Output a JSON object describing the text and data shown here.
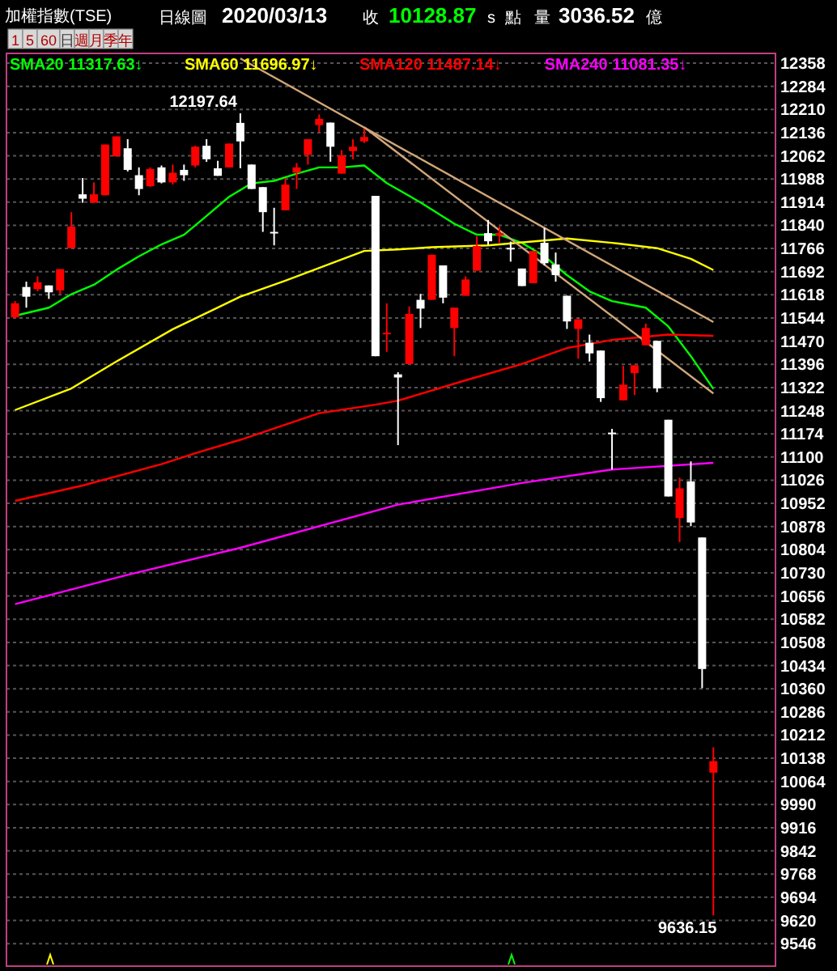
{
  "chart_data": {
    "type": "candlestick",
    "title": "加權指數(TSE)",
    "subtitle": "日線圖 2020/03/13 收 10128.87 s 點 量 3036.52 億",
    "categories": [
      null,
      null,
      null,
      null,
      null,
      null,
      null,
      null,
      null,
      null,
      null,
      null,
      null,
      null,
      null,
      null,
      null,
      null,
      null,
      null,
      null,
      null,
      null,
      null,
      null,
      null,
      null,
      null,
      null,
      null,
      null,
      null,
      null,
      null,
      null,
      null,
      null,
      null,
      null,
      null,
      null,
      null,
      null,
      null,
      null,
      null,
      null,
      null,
      null,
      null,
      null,
      null,
      null,
      null,
      null,
      null,
      null,
      null,
      null,
      null,
      null,
      null,
      null
    ],
    "ohlc": [
      [
        11546,
        11598,
        11543,
        11591
      ],
      [
        11643,
        11660,
        11577,
        11612
      ],
      [
        11636,
        11677,
        11629,
        11658
      ],
      [
        11648,
        11648,
        11605,
        11626
      ],
      [
        11632,
        11700,
        11620,
        11700
      ],
      [
        11767,
        11882,
        11767,
        11836
      ],
      [
        11939,
        11991,
        11912,
        11925
      ],
      [
        11912,
        11977,
        11912,
        11939
      ],
      [
        11936,
        12098,
        11936,
        12098
      ],
      [
        12060,
        12124,
        12060,
        12124
      ],
      [
        12086,
        12115,
        12012,
        12017
      ],
      [
        12000,
        12025,
        11936,
        11956
      ],
      [
        11965,
        12025,
        11962,
        12020
      ],
      [
        12025,
        12031,
        11974,
        11977
      ],
      [
        11977,
        12034,
        11970,
        12008
      ],
      [
        12017,
        12034,
        11982,
        12000
      ],
      [
        12031,
        12094,
        12025,
        12091
      ],
      [
        12094,
        12115,
        12043,
        12051
      ],
      [
        12022,
        12046,
        11998,
        11998
      ],
      [
        12025,
        12101,
        12025,
        12101
      ],
      [
        12167,
        12197.64,
        12022,
        12108
      ],
      [
        12034,
        12034,
        11956,
        11956
      ],
      [
        11962,
        11962,
        11819,
        11882
      ],
      [
        11819,
        11896,
        11776,
        11814
      ],
      [
        11888,
        11991,
        11888,
        11970
      ],
      [
        12008,
        12039,
        11956,
        12025
      ],
      [
        12065,
        12115,
        12034,
        12115
      ],
      [
        12160,
        12194,
        12137,
        12180
      ],
      [
        12168,
        12168,
        12043,
        12091
      ],
      [
        12005,
        12080,
        12005,
        12063
      ],
      [
        12077,
        12115,
        12051,
        12091
      ],
      [
        12108,
        12149,
        12103,
        12122
      ],
      [
        11934,
        11934,
        11422,
        11422
      ],
      [
        11493,
        11591,
        11436,
        11497
      ],
      [
        11364,
        11371,
        11138,
        11354
      ],
      [
        11397,
        11581,
        11397,
        11557
      ],
      [
        11602,
        11621,
        11512,
        11574
      ],
      [
        11602,
        11746,
        11602,
        11746
      ],
      [
        11712,
        11712,
        11591,
        11609
      ],
      [
        11512,
        11577,
        11422,
        11577
      ],
      [
        11615,
        11677,
        11615,
        11667
      ],
      [
        11695,
        11805,
        11695,
        11774
      ],
      [
        11815,
        11857,
        11776,
        11789
      ],
      [
        11807,
        11836,
        11784,
        11815
      ],
      [
        11768,
        11788,
        11724,
        11765
      ],
      [
        11702,
        11702,
        11646,
        11646
      ],
      [
        11655,
        11758,
        11655,
        11758
      ],
      [
        11784,
        11832,
        11712,
        11719
      ],
      [
        11715,
        11753,
        11660,
        11681
      ],
      [
        11615,
        11615,
        11509,
        11533
      ],
      [
        11509,
        11540,
        11414,
        11540
      ],
      [
        11465,
        11491,
        11405,
        11431
      ],
      [
        11440,
        11440,
        11276,
        11288
      ],
      [
        11178,
        11190,
        11060,
        11175
      ],
      [
        11281,
        11391,
        11281,
        11331
      ],
      [
        11368,
        11393,
        11298,
        11393
      ],
      [
        11457,
        11526,
        11457,
        11512
      ],
      [
        11471,
        11471,
        11307,
        11319
      ],
      [
        11219,
        11219,
        10974,
        10974
      ],
      [
        10905,
        11034,
        10828,
        11000
      ],
      [
        11022,
        11086,
        10879,
        10891
      ],
      [
        10843,
        10843,
        10362,
        10423
      ],
      [
        10092,
        10173,
        9636.15,
        10128.87
      ]
    ],
    "colors": [
      "#ff0000",
      "#ffffff",
      "#ff0000",
      "#ffffff",
      "#ff0000",
      "#ff0000",
      "#ffffff",
      "#ff0000",
      "#ff0000",
      "#ff0000",
      "#ffffff",
      "#ffffff",
      "#ff0000",
      "#ffffff",
      "#ff0000",
      "#ffffff",
      "#ff0000",
      "#ffffff",
      "#ffffff",
      "#ff0000",
      "#ffffff",
      "#ffffff",
      "#ffffff",
      "#ffffff",
      "#ff0000",
      "#ff0000",
      "#ff0000",
      "#ff0000",
      "#ffffff",
      "#ff0000",
      "#ff0000",
      "#ff0000",
      "#ffffff",
      "#ff0000",
      "#ffffff",
      "#ff0000",
      "#ffffff",
      "#ff0000",
      "#ffffff",
      "#ff0000",
      "#ff0000",
      "#ff0000",
      "#ffffff",
      "#ff0000",
      "#ffffff",
      "#ffffff",
      "#ff0000",
      "#ffffff",
      "#ffffff",
      "#ffffff",
      "#ff0000",
      "#ffffff",
      "#ffffff",
      "#ffffff",
      "#ff0000",
      "#ff0000",
      "#ff0000",
      "#ffffff",
      "#ffffff",
      "#ff0000",
      "#ffffff",
      "#ffffff",
      "#ff0000"
    ],
    "series": [
      {
        "type": "line",
        "name": "SMA20 11317.63↓",
        "color": "#00ff00",
        "values": [
          11551,
          null,
          null,
          11577,
          null,
          11620,
          null,
          11650,
          null,
          11698,
          null,
          11741,
          null,
          11779,
          null,
          11810,
          null,
          11870,
          null,
          11931,
          null,
          11974,
          null,
          11982,
          null,
          12005,
          null,
          12025,
          null,
          12025,
          null,
          12031,
          null,
          11975,
          null,
          null,
          11913,
          null,
          null,
          11845,
          null,
          11810,
          null,
          11810,
          null,
          11784,
          null,
          11741,
          null,
          11681,
          null,
          11629,
          null,
          11598,
          null,
          null,
          11577,
          null,
          11517,
          null,
          11422,
          null,
          11317.63
        ]
      },
      {
        "type": "line",
        "name": "SMA60 11696.97↓",
        "color": "#ffff00",
        "values": [
          11250,
          null,
          null,
          null,
          null,
          11319,
          null,
          null,
          null,
          11405,
          null,
          null,
          null,
          null,
          11508,
          null,
          null,
          null,
          null,
          null,
          11612,
          null,
          null,
          null,
          11663,
          null,
          null,
          null,
          null,
          null,
          null,
          11758,
          null,
          null,
          11763,
          null,
          null,
          11770,
          null,
          null,
          null,
          null,
          11776,
          null,
          null,
          null,
          null,
          null,
          null,
          11798,
          null,
          null,
          null,
          11784,
          null,
          null,
          null,
          11767,
          null,
          null,
          11733,
          null,
          11696.97
        ]
      },
      {
        "type": "line",
        "name": "SMA120 11487.14↓",
        "color": "#ff0000",
        "values": [
          10960,
          null,
          null,
          null,
          null,
          null,
          11009,
          null,
          null,
          null,
          null,
          null,
          null,
          11077,
          null,
          null,
          11112,
          null,
          null,
          null,
          11155,
          null,
          null,
          null,
          null,
          null,
          null,
          11240,
          null,
          null,
          null,
          null,
          11267,
          null,
          11280,
          null,
          null,
          null,
          null,
          null,
          11345,
          null,
          null,
          null,
          null,
          11397,
          null,
          null,
          null,
          11448,
          null,
          null,
          null,
          11474,
          null,
          null,
          null,
          null,
          11491,
          null,
          null,
          null,
          11487.14
        ]
      },
      {
        "type": "line",
        "name": "SMA240 11081.35↓",
        "color": "#ff00ff",
        "values": [
          10630,
          null,
          null,
          null,
          null,
          null,
          null,
          null,
          null,
          null,
          10724,
          null,
          null,
          null,
          null,
          null,
          null,
          null,
          null,
          null,
          10810,
          null,
          null,
          null,
          null,
          null,
          null,
          null,
          null,
          null,
          null,
          null,
          null,
          null,
          10948,
          null,
          null,
          null,
          null,
          null,
          null,
          null,
          null,
          null,
          null,
          11017,
          null,
          null,
          null,
          null,
          null,
          null,
          null,
          11060,
          null,
          null,
          null,
          null,
          null,
          null,
          null,
          null,
          11081.35
        ]
      },
      {
        "type": "line",
        "color": "#d2a77a",
        "values": [
          null,
          null,
          null,
          null,
          null,
          null,
          null,
          null,
          null,
          null,
          null,
          null,
          null,
          null,
          null,
          null,
          null,
          null,
          null,
          null,
          12373,
          null,
          null,
          null,
          null,
          null,
          null,
          null,
          null,
          null,
          null,
          null,
          null,
          null,
          null,
          null,
          null,
          null,
          null,
          null,
          null,
          null,
          null,
          null,
          null,
          null,
          null,
          null,
          null,
          null,
          null,
          null,
          null,
          null,
          null,
          null,
          null,
          null,
          null,
          null,
          null,
          null,
          11531
        ]
      },
      {
        "type": "line",
        "color": "#d2a77a",
        "values": [
          null,
          null,
          null,
          null,
          null,
          null,
          null,
          null,
          null,
          null,
          null,
          null,
          null,
          null,
          null,
          null,
          null,
          null,
          null,
          null,
          null,
          null,
          null,
          null,
          null,
          null,
          null,
          null,
          null,
          null,
          null,
          12153,
          null,
          null,
          null,
          null,
          null,
          null,
          null,
          null,
          null,
          null,
          null,
          null,
          null,
          null,
          null,
          null,
          null,
          null,
          null,
          null,
          null,
          null,
          null,
          null,
          null,
          null,
          null,
          null,
          null,
          null,
          11303
        ]
      }
    ],
    "ylim": [
      9474,
      12389
    ],
    "yticks": [
      12358,
      12284,
      12210,
      12136,
      12062,
      11988,
      11914,
      11840,
      11766,
      11692,
      11618,
      11544,
      11470,
      11396,
      11322,
      11248,
      11174,
      11100,
      11026,
      10952,
      10878,
      10804,
      10730,
      10656,
      10582,
      10508,
      10434,
      10360,
      10286,
      10212,
      10138,
      10064,
      9990,
      9916,
      9842,
      9768,
      9694,
      9620,
      9546
    ],
    "tick_labels": "y",
    "grid": "y",
    "legend": "top left",
    "annotations": [
      "12197.64",
      "9636.15",
      "1",
      "5",
      "60",
      "日",
      "週",
      "月",
      "季",
      "年"
    ]
  }
}
